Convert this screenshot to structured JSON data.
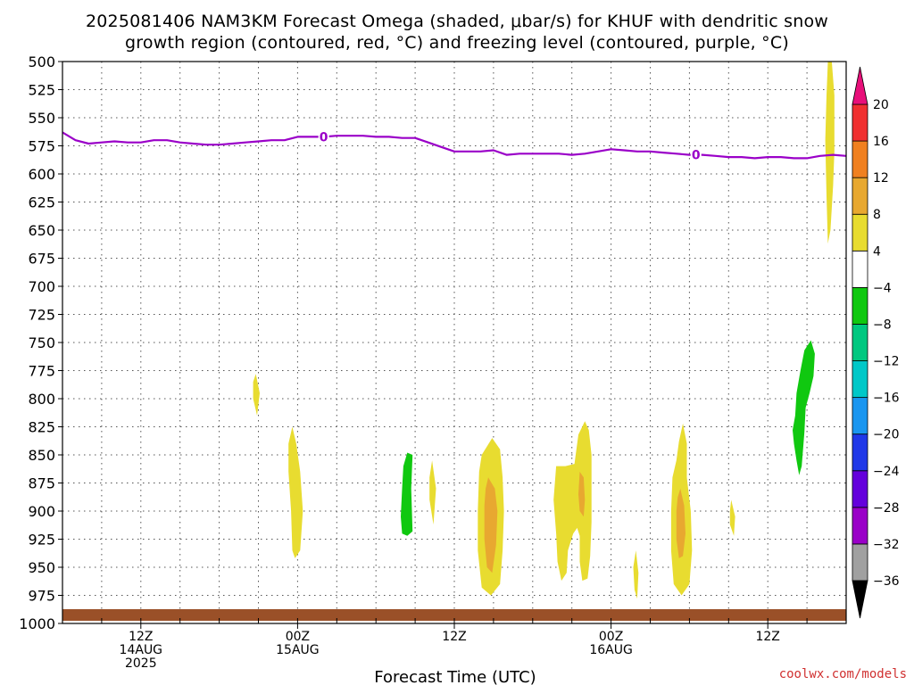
{
  "chart_data": {
    "type": "heatmap",
    "title_lines": [
      "2025081406 NAM3KM Forecast Omega (shaded, μbar/s) for KHUF with dendritic snow",
      "growth region (contoured, red, °C) and freezing level (contoured, purple, °C)"
    ],
    "xlabel": "Forecast Time (UTC)",
    "credit": "coolwx.com/models",
    "y_axis": {
      "range": [
        500,
        1000
      ],
      "inverted": true,
      "ticks": [
        500,
        525,
        550,
        575,
        600,
        625,
        650,
        675,
        700,
        725,
        750,
        775,
        800,
        825,
        850,
        875,
        900,
        925,
        950,
        975,
        1000
      ],
      "tick_labels": [
        "500",
        "525",
        "550",
        "575",
        "600",
        "625",
        "650",
        "675",
        "700",
        "725",
        "750",
        "775",
        "800",
        "825",
        "850",
        "875",
        "900",
        "925",
        "950",
        "975",
        "1000"
      ]
    },
    "x_axis": {
      "range_hours": [
        0,
        60
      ],
      "gridlines_every_hours": 3,
      "labeled_ticks": [
        {
          "hour": 6,
          "lines": [
            "12Z",
            "14AUG",
            "2025"
          ]
        },
        {
          "hour": 18,
          "lines": [
            "00Z",
            "15AUG"
          ]
        },
        {
          "hour": 30,
          "lines": [
            "12Z"
          ]
        },
        {
          "hour": 42,
          "lines": [
            "00Z",
            "16AUG"
          ]
        },
        {
          "hour": 54,
          "lines": [
            "12Z"
          ]
        }
      ]
    },
    "grid": true,
    "colorbar": {
      "position": "right",
      "levels": [
        -36,
        -32,
        -28,
        -24,
        -20,
        -16,
        -12,
        -8,
        -4,
        4,
        8,
        12,
        16,
        20
      ],
      "tick_labels": [
        "−36",
        "−32",
        "−28",
        "−24",
        "−20",
        "−16",
        "−12",
        "−8",
        "−4",
        "4",
        "8",
        "12",
        "16",
        "20"
      ],
      "bins": [
        {
          "from": -36,
          "to": -32,
          "color": "#a0a0a0"
        },
        {
          "from": -32,
          "to": -28,
          "color": "#9a00c8"
        },
        {
          "from": -28,
          "to": -24,
          "color": "#6400dc"
        },
        {
          "from": -24,
          "to": -20,
          "color": "#2038e8"
        },
        {
          "from": -20,
          "to": -16,
          "color": "#1a96f0"
        },
        {
          "from": -16,
          "to": -12,
          "color": "#00c8c8"
        },
        {
          "from": -12,
          "to": -8,
          "color": "#00c880"
        },
        {
          "from": -8,
          "to": -4,
          "color": "#10c810"
        },
        {
          "from": -4,
          "to": 4,
          "color": "#ffffff"
        },
        {
          "from": 4,
          "to": 8,
          "color": "#e8dc30"
        },
        {
          "from": 8,
          "to": 12,
          "color": "#e8a830"
        },
        {
          "from": 12,
          "to": 16,
          "color": "#f08020"
        },
        {
          "from": 16,
          "to": 20,
          "color": "#f03030"
        }
      ],
      "under_color": "#000000",
      "over_color": "#e8107a"
    },
    "freezing_level": {
      "color": "#9a00c8",
      "label": "0",
      "label_hours": [
        20,
        48.5
      ],
      "hours": [
        0,
        1,
        2,
        3,
        4,
        5,
        6,
        7,
        8,
        9,
        10,
        11,
        12,
        13,
        14,
        15,
        16,
        17,
        18,
        19,
        20,
        21,
        22,
        23,
        24,
        25,
        26,
        27,
        28,
        29,
        30,
        31,
        32,
        33,
        34,
        35,
        36,
        37,
        38,
        39,
        40,
        41,
        42,
        43,
        44,
        45,
        46,
        47,
        48,
        49,
        50,
        51,
        52,
        53,
        54,
        55,
        56,
        57,
        58,
        59,
        60
      ],
      "pressure": [
        563,
        570,
        573,
        572,
        571,
        572,
        572,
        570,
        570,
        572,
        573,
        574,
        574,
        573,
        572,
        571,
        570,
        570,
        567,
        567,
        567,
        566,
        566,
        566,
        567,
        567,
        568,
        568,
        572,
        576,
        580,
        580,
        580,
        579,
        583,
        582,
        582,
        582,
        582,
        583,
        582,
        580,
        578,
        579,
        580,
        580,
        581,
        582,
        583,
        583,
        584,
        585,
        585,
        586,
        585,
        585,
        586,
        586,
        584,
        583,
        584
      ]
    },
    "omega_regions": [
      {
        "name": "omega-4to8-h15",
        "color": "#e8dc30",
        "outline": [
          [
            14.8,
            778
          ],
          [
            15.1,
            795
          ],
          [
            14.9,
            815
          ],
          [
            14.6,
            800
          ],
          [
            14.6,
            785
          ]
        ]
      },
      {
        "name": "omega-4to8-h18",
        "color": "#e8dc30",
        "outline": [
          [
            17.6,
            825
          ],
          [
            17.9,
            840
          ],
          [
            18.2,
            865
          ],
          [
            18.4,
            900
          ],
          [
            18.2,
            935
          ],
          [
            17.8,
            942
          ],
          [
            17.6,
            935
          ],
          [
            17.5,
            900
          ],
          [
            17.3,
            865
          ],
          [
            17.3,
            840
          ]
        ]
      },
      {
        "name": "omega-neg4to-8-h26",
        "color": "#10c810",
        "outline": [
          [
            26.4,
            848
          ],
          [
            26.8,
            850
          ],
          [
            26.7,
            880
          ],
          [
            26.8,
            918
          ],
          [
            26.4,
            922
          ],
          [
            26.0,
            920
          ],
          [
            25.9,
            905
          ],
          [
            26.0,
            880
          ],
          [
            26.1,
            860
          ]
        ]
      },
      {
        "name": "omega-4to8-h28",
        "color": "#e8dc30",
        "outline": [
          [
            28.3,
            855
          ],
          [
            28.6,
            880
          ],
          [
            28.4,
            912
          ],
          [
            28.1,
            890
          ],
          [
            28.1,
            870
          ]
        ]
      },
      {
        "name": "omega-4to8-h32",
        "color": "#e8dc30",
        "outline": [
          [
            32.9,
            835
          ],
          [
            33.5,
            845
          ],
          [
            33.7,
            870
          ],
          [
            33.8,
            900
          ],
          [
            33.7,
            935
          ],
          [
            33.5,
            965
          ],
          [
            32.8,
            975
          ],
          [
            32.1,
            968
          ],
          [
            31.8,
            935
          ],
          [
            31.8,
            900
          ],
          [
            31.9,
            865
          ],
          [
            32.1,
            850
          ]
        ]
      },
      {
        "name": "omega-8to12-h32",
        "color": "#e8a830",
        "outline": [
          [
            32.6,
            870
          ],
          [
            33.1,
            880
          ],
          [
            33.3,
            900
          ],
          [
            33.2,
            930
          ],
          [
            32.9,
            955
          ],
          [
            32.5,
            950
          ],
          [
            32.3,
            925
          ],
          [
            32.3,
            895
          ],
          [
            32.4,
            880
          ]
        ]
      },
      {
        "name": "omega-4to8-h38",
        "color": "#e8dc30",
        "outline": [
          [
            37.8,
            860
          ],
          [
            38.5,
            860
          ],
          [
            39.2,
            858
          ],
          [
            39.5,
            832
          ],
          [
            40.0,
            820
          ],
          [
            40.3,
            828
          ],
          [
            40.5,
            850
          ],
          [
            40.5,
            880
          ],
          [
            40.5,
            910
          ],
          [
            40.4,
            940
          ],
          [
            40.2,
            960
          ],
          [
            39.8,
            962
          ],
          [
            39.6,
            945
          ],
          [
            39.6,
            922
          ],
          [
            39.4,
            915
          ],
          [
            39.1,
            920
          ],
          [
            38.7,
            935
          ],
          [
            38.6,
            955
          ],
          [
            38.2,
            962
          ],
          [
            37.9,
            945
          ],
          [
            37.8,
            920
          ],
          [
            37.6,
            890
          ]
        ]
      },
      {
        "name": "omega-8to12-h39",
        "color": "#e8a830",
        "outline": [
          [
            39.6,
            865
          ],
          [
            39.9,
            870
          ],
          [
            40.0,
            890
          ],
          [
            39.9,
            905
          ],
          [
            39.6,
            900
          ],
          [
            39.5,
            885
          ]
        ]
      },
      {
        "name": "omega-4to8-h43",
        "color": "#e8dc30",
        "outline": [
          [
            43.9,
            935
          ],
          [
            44.1,
            955
          ],
          [
            44.0,
            978
          ],
          [
            43.8,
            970
          ],
          [
            43.7,
            950
          ]
        ]
      },
      {
        "name": "omega-4to8-h47",
        "color": "#e8dc30",
        "outline": [
          [
            47.5,
            822
          ],
          [
            47.8,
            840
          ],
          [
            47.8,
            870
          ],
          [
            48.1,
            900
          ],
          [
            48.2,
            935
          ],
          [
            48.0,
            965
          ],
          [
            47.4,
            975
          ],
          [
            46.8,
            965
          ],
          [
            46.6,
            935
          ],
          [
            46.6,
            900
          ],
          [
            46.7,
            870
          ],
          [
            47.0,
            855
          ],
          [
            47.2,
            838
          ]
        ]
      },
      {
        "name": "omega-8to12-h47",
        "color": "#e8a830",
        "outline": [
          [
            47.3,
            880
          ],
          [
            47.6,
            895
          ],
          [
            47.7,
            920
          ],
          [
            47.5,
            940
          ],
          [
            47.2,
            942
          ],
          [
            47.0,
            925
          ],
          [
            47.0,
            900
          ],
          [
            47.1,
            888
          ]
        ]
      },
      {
        "name": "omega-4to8-h51",
        "color": "#e8dc30",
        "outline": [
          [
            51.2,
            890
          ],
          [
            51.5,
            905
          ],
          [
            51.4,
            922
          ],
          [
            51.1,
            912
          ],
          [
            51.1,
            900
          ]
        ]
      },
      {
        "name": "omega-neg4to-8-h56",
        "color": "#10c810",
        "outline": [
          [
            57.3,
            748
          ],
          [
            57.6,
            760
          ],
          [
            57.5,
            780
          ],
          [
            57.2,
            795
          ],
          [
            56.9,
            808
          ],
          [
            56.8,
            830
          ],
          [
            56.6,
            860
          ],
          [
            56.4,
            868
          ],
          [
            56.2,
            855
          ],
          [
            56.0,
            840
          ],
          [
            55.9,
            828
          ],
          [
            56.1,
            815
          ],
          [
            56.2,
            795
          ],
          [
            56.5,
            775
          ],
          [
            56.8,
            757
          ]
        ]
      },
      {
        "name": "omega-4to8-h58",
        "color": "#e8dc30",
        "outline": [
          [
            58.6,
            500
          ],
          [
            58.9,
            500
          ],
          [
            59.1,
            530
          ],
          [
            59.1,
            580
          ],
          [
            59.0,
            610
          ],
          [
            58.8,
            650
          ],
          [
            58.6,
            662
          ],
          [
            58.5,
            620
          ],
          [
            58.4,
            570
          ],
          [
            58.5,
            530
          ]
        ]
      }
    ]
  }
}
